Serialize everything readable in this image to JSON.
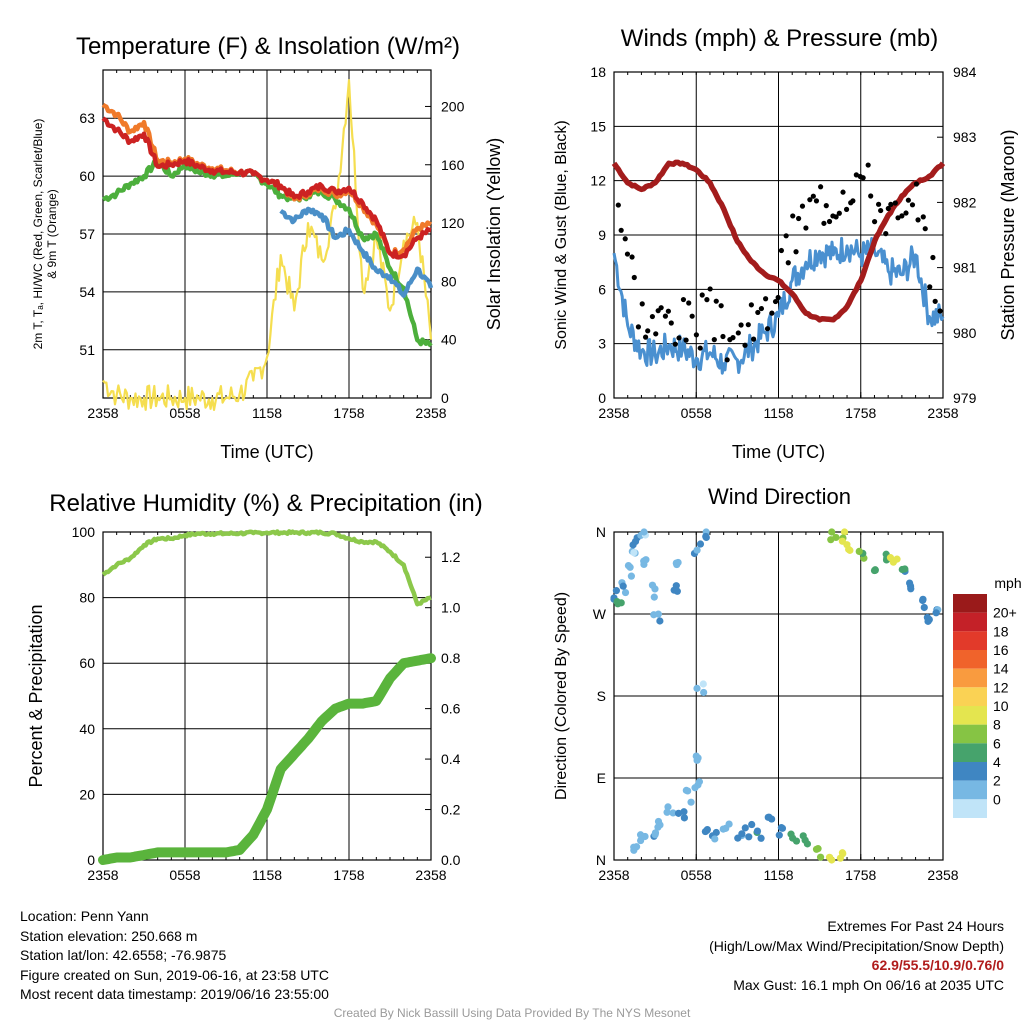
{
  "info": {
    "location": "Location: Penn Yann",
    "elevation": "Station elevation: 250.668 m",
    "latlon": "Station lat/lon: 42.6558; -76.9875",
    "created": "Figure created on Sun, 2019-06-16, at 23:58 UTC",
    "recent": "Most recent data timestamp: 2019/06/16 23:55:00"
  },
  "extremes": {
    "line1": "Extremes For Past 24 Hours",
    "line2": "(High/Low/Max Wind/Precipitation/Snow Depth)",
    "values": "62.9/55.5/10.9/0.76/0",
    "gust": "Max Gust: 16.1 mph On 06/16 at 2035 UTC"
  },
  "credit": "Created By Nick Bassill Using Data Provided By The NYS Mesonet",
  "colors": {
    "red": "#cc2222",
    "green": "#4caf3c",
    "scarlet_blue": "#4a8fc8",
    "orange": "#f07a2a",
    "yellow": "#f5de50",
    "wind": "#4a90d0",
    "gust": "#000000",
    "pressure": "#a31c1c",
    "rh": "#8cc84b",
    "precip": "#5ab43c"
  },
  "chart_data": [
    {
      "type": "line",
      "title": "Temperature (F) & Insolation (W/m²)",
      "xlabel": "Time (UTC)",
      "ylabel": "2m T, Td, HI/WC (Red, Green, Scarlet/Blue) & 9m T (Orange)",
      "ylabel_lines": [
        "2m T, Tₐ, HI/WC (Red, Green, Scarlet/Blue)",
        "& 9m T (Orange)"
      ],
      "y2label": "Solar Insolation (Yellow)",
      "xticks": [
        "2358",
        "0558",
        "1158",
        "1758",
        "2358"
      ],
      "x": [
        0,
        1,
        2,
        3,
        4,
        5,
        6,
        7,
        8,
        9,
        10,
        11,
        12,
        13,
        14,
        15,
        16,
        17,
        18,
        19,
        20,
        21,
        22,
        23,
        24
      ],
      "xlim": [
        0,
        24
      ],
      "ylim": [
        48.5,
        65.5
      ],
      "yticks": [
        51,
        54,
        57,
        60,
        63
      ],
      "y2lim": [
        0,
        225
      ],
      "y2ticks": [
        0,
        40,
        80,
        120,
        160,
        200
      ],
      "grid": true,
      "series": [
        {
          "name": "2m T (Red)",
          "color": "#cc2222",
          "axis": "left",
          "values": [
            63.0,
            62.4,
            61.8,
            62.2,
            60.5,
            60.6,
            60.8,
            60.5,
            60.3,
            60.2,
            60.2,
            60.1,
            59.8,
            59.5,
            58.9,
            59.2,
            59.5,
            59.2,
            59.4,
            58.6,
            57.7,
            56.0,
            55.9,
            56.8,
            57.2
          ]
        },
        {
          "name": "9m T (Orange)",
          "color": "#f07a2a",
          "axis": "left",
          "values": [
            63.7,
            63.2,
            62.3,
            62.8,
            60.8,
            60.7,
            60.9,
            60.6,
            60.4,
            60.3,
            60.2,
            60.1,
            59.8,
            59.5,
            58.8,
            59.1,
            59.4,
            59.0,
            59.3,
            58.4,
            57.5,
            56.0,
            56.2,
            57.3,
            57.5
          ]
        },
        {
          "name": "Td (Green)",
          "color": "#4caf3c",
          "axis": "left",
          "values": [
            58.8,
            59.1,
            59.6,
            60.0,
            60.8,
            60.0,
            60.6,
            60.2,
            60.1,
            60.0,
            60.2,
            60.1,
            59.6,
            59.0,
            58.8,
            59.0,
            59.2,
            58.8,
            58.3,
            56.8,
            57.0,
            55.2,
            54.2,
            51.5,
            51.2
          ]
        },
        {
          "name": "HI/WC (Blue)",
          "color": "#4a8fc8",
          "axis": "left",
          "values": [
            null,
            null,
            null,
            null,
            null,
            null,
            null,
            null,
            null,
            null,
            null,
            null,
            null,
            58.2,
            57.7,
            58.3,
            58.0,
            56.8,
            57.2,
            56.1,
            55.1,
            54.8,
            53.8,
            55.2,
            54.2
          ]
        },
        {
          "name": "Solar Insolation (Yellow)",
          "color": "#f5de50",
          "axis": "right",
          "values": [
            12,
            2,
            0,
            0,
            0,
            0,
            0,
            0,
            0,
            0,
            3,
            12,
            28,
            98,
            60,
            120,
            95,
            130,
            218,
            75,
            110,
            60,
            108,
            120,
            40
          ]
        }
      ]
    },
    {
      "type": "line",
      "title": "Winds (mph) & Pressure (mb)",
      "xlabel": "Time (UTC)",
      "ylabel": "Sonic Wind & Gust (Blue, Black)",
      "y2label": "Station Pressure (Maroon)",
      "xticks": [
        "2358",
        "0558",
        "1158",
        "1758",
        "2358"
      ],
      "x": [
        0,
        1,
        2,
        3,
        4,
        5,
        6,
        7,
        8,
        9,
        10,
        11,
        12,
        13,
        14,
        15,
        16,
        17,
        18,
        19,
        20,
        21,
        22,
        23,
        24
      ],
      "xlim": [
        0,
        24
      ],
      "ylim": [
        0,
        18
      ],
      "yticks": [
        0,
        3,
        6,
        9,
        12,
        15,
        18
      ],
      "y2lim": [
        979,
        984
      ],
      "y2ticks": [
        979,
        980,
        981,
        982,
        983,
        984
      ],
      "grid": true,
      "series": [
        {
          "name": "Sonic Wind (Blue)",
          "color": "#4a90d0",
          "axis": "left",
          "style": "line",
          "values": [
            8.0,
            4.0,
            2.6,
            2.4,
            2.9,
            2.7,
            2.2,
            2.5,
            1.9,
            2.1,
            2.8,
            3.6,
            4.5,
            6.5,
            7.5,
            8.1,
            7.9,
            8.4,
            7.9,
            8.1,
            7.0,
            6.8,
            7.9,
            4.5,
            4.5
          ]
        },
        {
          "name": "Gust (Black)",
          "color": "#000000",
          "axis": "left",
          "style": "markers",
          "values": [
            12.0,
            8.0,
            4.5,
            4.0,
            4.6,
            4.2,
            4.0,
            4.7,
            3.4,
            3.6,
            3.8,
            4.5,
            6.5,
            8.8,
            10.2,
            11.0,
            11.0,
            11.8,
            12.4,
            11.0,
            10.2,
            9.5,
            10.5,
            7.0,
            5.8
          ]
        },
        {
          "name": "Station Pressure (Maroon)",
          "color": "#a31c1c",
          "axis": "right",
          "style": "line",
          "values": [
            982.6,
            982.3,
            982.2,
            982.3,
            982.6,
            982.6,
            982.5,
            982.3,
            981.9,
            981.4,
            981.1,
            980.9,
            980.8,
            980.6,
            980.3,
            980.2,
            980.2,
            980.4,
            980.8,
            981.4,
            981.8,
            982.1,
            982.3,
            982.4,
            982.6
          ]
        }
      ]
    },
    {
      "type": "line",
      "title": "Relative Humidity (%) & Precipitation (in)",
      "xlabel": "",
      "ylabel": "Percent & Precipitation",
      "xticks": [
        "2358",
        "0558",
        "1158",
        "1758",
        "2358"
      ],
      "x": [
        0,
        1,
        2,
        3,
        4,
        5,
        6,
        7,
        8,
        9,
        10,
        11,
        12,
        13,
        14,
        15,
        16,
        17,
        18,
        19,
        20,
        21,
        22,
        23,
        24
      ],
      "xlim": [
        0,
        24
      ],
      "ylim": [
        0,
        100
      ],
      "yticks": [
        0,
        20,
        40,
        60,
        80,
        100
      ],
      "y2lim": [
        0,
        1.3
      ],
      "y2ticks": [
        0.0,
        0.2,
        0.4,
        0.6,
        0.8,
        1.0,
        1.2
      ],
      "grid": true,
      "series": [
        {
          "name": "Relative Humidity",
          "color": "#8cc84b",
          "axis": "left",
          "values": [
            87,
            90,
            92,
            96,
            98,
            98,
            99,
            99.5,
            99.5,
            99.5,
            99.6,
            99.7,
            99.8,
            99.8,
            99.8,
            99.8,
            99.8,
            99.5,
            98,
            97,
            97,
            94,
            90,
            78,
            80
          ]
        },
        {
          "name": "Precipitation",
          "color": "#5ab43c",
          "axis": "right",
          "values": [
            0.0,
            0.01,
            0.01,
            0.02,
            0.03,
            0.03,
            0.03,
            0.03,
            0.03,
            0.03,
            0.04,
            0.1,
            0.2,
            0.36,
            0.42,
            0.48,
            0.55,
            0.6,
            0.62,
            0.62,
            0.63,
            0.72,
            0.78,
            0.79,
            0.8
          ]
        }
      ]
    },
    {
      "type": "scatter",
      "title": "Wind Direction",
      "xlabel": "",
      "ylabel": "Direction (Colored By Speed)",
      "xticks": [
        "2358",
        "0558",
        "1158",
        "1758",
        "2358"
      ],
      "xlim": [
        0,
        24
      ],
      "ylim": [
        0,
        360
      ],
      "yticks": [
        "N",
        "E",
        "S",
        "W",
        "N"
      ],
      "ytick_values": [
        0,
        90,
        180,
        270,
        360
      ],
      "grid": true,
      "colorbar": {
        "title": "mph",
        "labels": [
          "20+",
          "18",
          "16",
          "14",
          "12",
          "10",
          "8",
          "6",
          "4",
          "2",
          "0"
        ],
        "colors": [
          "#9a1a1a",
          "#c42128",
          "#e23a2a",
          "#f0632b",
          "#f99b3f",
          "#fad254",
          "#e4e54f",
          "#86c444",
          "#46a36c",
          "#3f86c2",
          "#77b8e3",
          "#c0e4f8"
        ]
      },
      "points": [
        {
          "x": 0.1,
          "y": 290,
          "speed": 4
        },
        {
          "x": 0.3,
          "y": 282,
          "speed": 6
        },
        {
          "x": 0.7,
          "y": 300,
          "speed": 3
        },
        {
          "x": 1.1,
          "y": 318,
          "speed": 2
        },
        {
          "x": 1.4,
          "y": 335,
          "speed": 1
        },
        {
          "x": 1.5,
          "y": 350,
          "speed": 3
        },
        {
          "x": 2.1,
          "y": 358,
          "speed": 1
        },
        {
          "x": 2.4,
          "y": 325,
          "speed": 2
        },
        {
          "x": 2.9,
          "y": 295,
          "speed": 3
        },
        {
          "x": 3.1,
          "y": 268,
          "speed": 3
        },
        {
          "x": 4.5,
          "y": 325,
          "speed": 2
        },
        {
          "x": 4.6,
          "y": 298,
          "speed": 4
        },
        {
          "x": 6.1,
          "y": 342,
          "speed": 3
        },
        {
          "x": 6.3,
          "y": 190,
          "speed": 1
        },
        {
          "x": 6.9,
          "y": 360,
          "speed": 3
        },
        {
          "x": 1.5,
          "y": 12,
          "speed": 2
        },
        {
          "x": 2.1,
          "y": 23,
          "speed": 2
        },
        {
          "x": 2.9,
          "y": 30,
          "speed": 3
        },
        {
          "x": 3.4,
          "y": 42,
          "speed": 2
        },
        {
          "x": 4.1,
          "y": 56,
          "speed": 2
        },
        {
          "x": 4.9,
          "y": 50,
          "speed": 3
        },
        {
          "x": 5.5,
          "y": 70,
          "speed": 2
        },
        {
          "x": 6.0,
          "y": 85,
          "speed": 2
        },
        {
          "x": 6.2,
          "y": 112,
          "speed": 2
        },
        {
          "x": 6.7,
          "y": 34,
          "speed": 3
        },
        {
          "x": 7.4,
          "y": 30,
          "speed": 3
        },
        {
          "x": 8.2,
          "y": 38,
          "speed": 2
        },
        {
          "x": 9.1,
          "y": 25,
          "speed": 3
        },
        {
          "x": 9.8,
          "y": 32,
          "speed": 4
        },
        {
          "x": 10.6,
          "y": 28,
          "speed": 5
        },
        {
          "x": 11.5,
          "y": 43,
          "speed": 4
        },
        {
          "x": 12.3,
          "y": 34,
          "speed": 5
        },
        {
          "x": 13.1,
          "y": 25,
          "speed": 6
        },
        {
          "x": 14.0,
          "y": 22,
          "speed": 6
        },
        {
          "x": 15.0,
          "y": 10,
          "speed": 7
        },
        {
          "x": 15.8,
          "y": 6,
          "speed": 9
        },
        {
          "x": 16.5,
          "y": 8,
          "speed": 10
        },
        {
          "x": 16.0,
          "y": 357,
          "speed": 8
        },
        {
          "x": 16.6,
          "y": 355,
          "speed": 9
        },
        {
          "x": 17.2,
          "y": 345,
          "speed": 10
        },
        {
          "x": 18.0,
          "y": 335,
          "speed": 7
        },
        {
          "x": 18.9,
          "y": 324,
          "speed": 6
        },
        {
          "x": 19.7,
          "y": 332,
          "speed": 6
        },
        {
          "x": 20.4,
          "y": 326,
          "speed": 10
        },
        {
          "x": 21.1,
          "y": 315,
          "speed": 5
        },
        {
          "x": 21.8,
          "y": 298,
          "speed": 4
        },
        {
          "x": 22.5,
          "y": 282,
          "speed": 4
        },
        {
          "x": 23.0,
          "y": 268,
          "speed": 4
        },
        {
          "x": 23.7,
          "y": 272,
          "speed": 3
        }
      ]
    }
  ]
}
